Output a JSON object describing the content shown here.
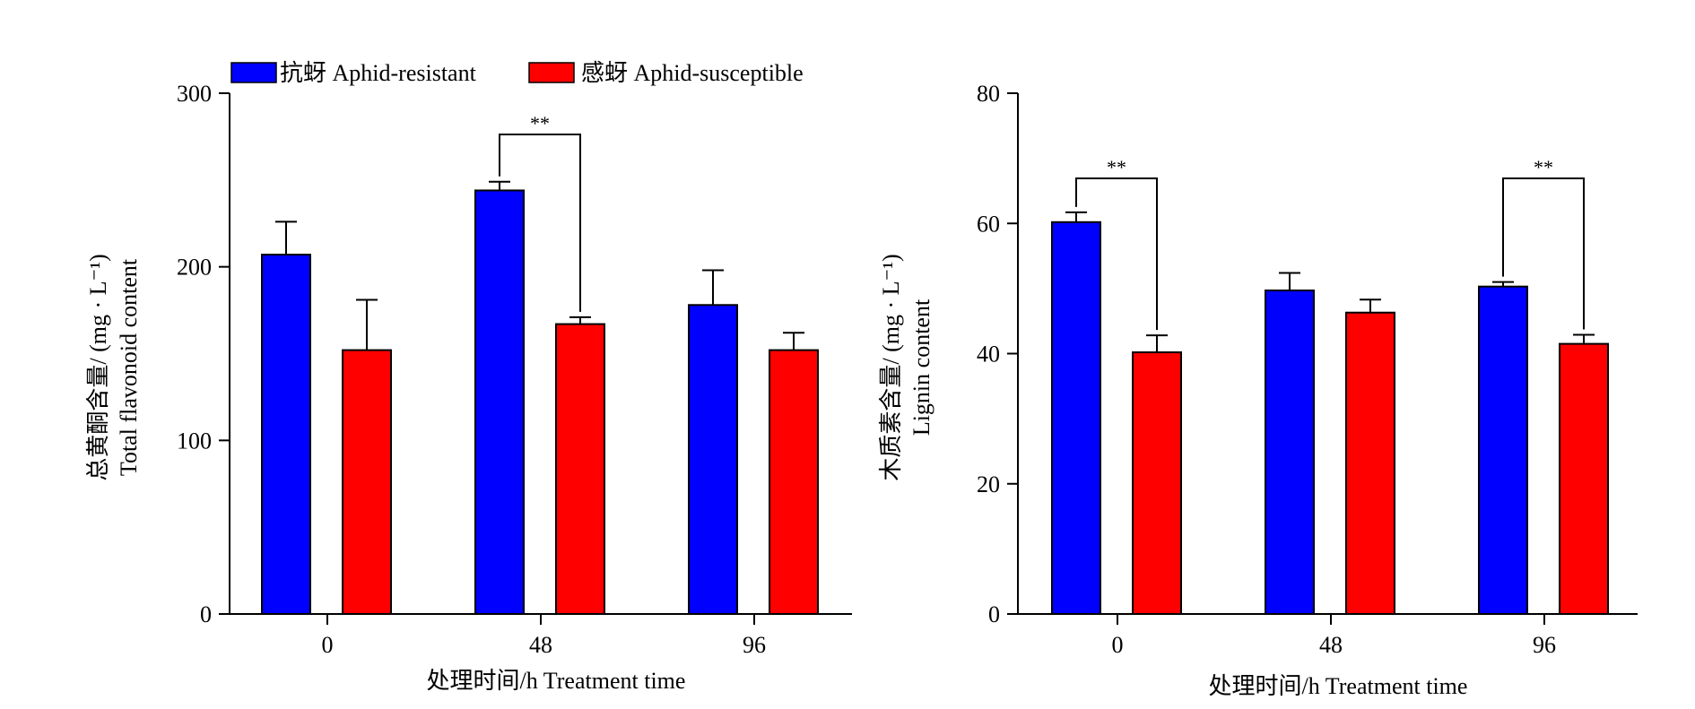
{
  "legend": {
    "entries": [
      {
        "label": "抗蚜 Aphid-resistant",
        "color": "#0000ff"
      },
      {
        "label": "感蚜 Aphid-susceptible",
        "color": "#ff0000"
      }
    ]
  },
  "chart_data": [
    {
      "type": "bar",
      "categories": [
        "0",
        "48",
        "96"
      ],
      "xlabel": "处理时间/h Treatment time",
      "ylabel": [
        "总黄酮含量/ (mg · L⁻¹)",
        "Total flavonoid content"
      ],
      "ylim": [
        0,
        300
      ],
      "yticks": [
        0,
        100,
        200,
        300
      ],
      "series": [
        {
          "name": "抗蚜 Aphid-resistant",
          "color": "#0000ff",
          "values": [
            207,
            244,
            178
          ],
          "errors": [
            19,
            5,
            20
          ]
        },
        {
          "name": "感蚜 Aphid-susceptible",
          "color": "#ff0000",
          "values": [
            152,
            167,
            152
          ],
          "errors": [
            29,
            4,
            10
          ]
        }
      ],
      "significance": [
        {
          "category": "48",
          "label": "**"
        }
      ]
    },
    {
      "type": "bar",
      "categories": [
        "0",
        "48",
        "96"
      ],
      "xlabel": "处理时间/h Treatment time",
      "ylabel": [
        "木质素含量/ (mg · L⁻¹)",
        "Lignin content"
      ],
      "ylim": [
        0,
        80
      ],
      "yticks": [
        0,
        20,
        40,
        60,
        80
      ],
      "series": [
        {
          "name": "抗蚜 Aphid-resistant",
          "color": "#0000ff",
          "values": [
            60.2,
            49.7,
            50.3
          ],
          "errors": [
            1.5,
            2.7,
            0.7
          ]
        },
        {
          "name": "感蚜 Aphid-susceptible",
          "color": "#ff0000",
          "values": [
            40.2,
            46.3,
            41.5
          ],
          "errors": [
            2.6,
            2.0,
            1.4
          ]
        }
      ],
      "significance": [
        {
          "category": "0",
          "label": "**"
        },
        {
          "category": "96",
          "label": "**"
        }
      ]
    }
  ]
}
